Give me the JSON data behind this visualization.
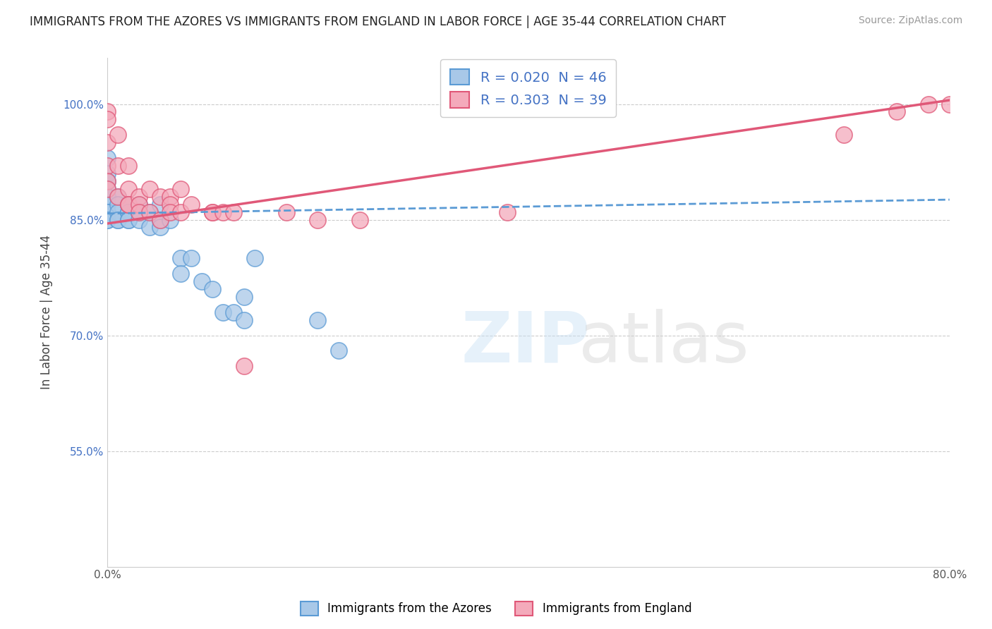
{
  "title": "IMMIGRANTS FROM THE AZORES VS IMMIGRANTS FROM ENGLAND IN LABOR FORCE | AGE 35-44 CORRELATION CHART",
  "source": "Source: ZipAtlas.com",
  "ylabel": "In Labor Force | Age 35-44",
  "xmin": 0.0,
  "xmax": 0.8,
  "ymin": 0.4,
  "ymax": 1.06,
  "yticks": [
    0.55,
    0.7,
    0.85,
    1.0
  ],
  "ytick_labels": [
    "55.0%",
    "70.0%",
    "85.0%",
    "100.0%"
  ],
  "xtick_labels": [
    "0.0%",
    "80.0%"
  ],
  "legend_r1": "R = 0.020  N = 46",
  "legend_r2": "R = 0.303  N = 39",
  "azores_color": "#a8c8e8",
  "england_color": "#f4aabb",
  "azores_line_color": "#5b9bd5",
  "england_line_color": "#e05878",
  "r_value_color": "#4472c4",
  "background_color": "#ffffff",
  "grid_color": "#cccccc",
  "azores_x": [
    0.0,
    0.0,
    0.0,
    0.0,
    0.0,
    0.0,
    0.0,
    0.0,
    0.0,
    0.0,
    0.0,
    0.0,
    0.0,
    0.01,
    0.01,
    0.01,
    0.01,
    0.01,
    0.02,
    0.02,
    0.02,
    0.02,
    0.02,
    0.02,
    0.03,
    0.03,
    0.03,
    0.03,
    0.04,
    0.04,
    0.05,
    0.05,
    0.05,
    0.06,
    0.07,
    0.07,
    0.08,
    0.09,
    0.1,
    0.11,
    0.12,
    0.13,
    0.14,
    0.2,
    0.22,
    0.13
  ],
  "azores_y": [
    0.93,
    0.91,
    0.9,
    0.89,
    0.88,
    0.88,
    0.87,
    0.87,
    0.86,
    0.86,
    0.86,
    0.85,
    0.85,
    0.88,
    0.87,
    0.86,
    0.85,
    0.85,
    0.87,
    0.87,
    0.86,
    0.86,
    0.85,
    0.85,
    0.87,
    0.86,
    0.86,
    0.85,
    0.86,
    0.84,
    0.87,
    0.85,
    0.84,
    0.85,
    0.8,
    0.78,
    0.8,
    0.77,
    0.76,
    0.73,
    0.73,
    0.72,
    0.8,
    0.72,
    0.68,
    0.75
  ],
  "england_x": [
    0.0,
    0.0,
    0.0,
    0.0,
    0.0,
    0.0,
    0.01,
    0.01,
    0.01,
    0.02,
    0.02,
    0.02,
    0.02,
    0.03,
    0.03,
    0.03,
    0.04,
    0.04,
    0.05,
    0.05,
    0.06,
    0.06,
    0.06,
    0.07,
    0.07,
    0.08,
    0.1,
    0.1,
    0.11,
    0.12,
    0.13,
    0.17,
    0.2,
    0.24,
    0.38,
    0.7,
    0.75,
    0.78,
    0.8
  ],
  "england_y": [
    0.99,
    0.98,
    0.95,
    0.92,
    0.9,
    0.89,
    0.96,
    0.92,
    0.88,
    0.92,
    0.89,
    0.87,
    0.87,
    0.88,
    0.87,
    0.86,
    0.89,
    0.86,
    0.88,
    0.85,
    0.88,
    0.87,
    0.86,
    0.89,
    0.86,
    0.87,
    0.86,
    0.86,
    0.86,
    0.86,
    0.66,
    0.86,
    0.85,
    0.85,
    0.86,
    0.96,
    0.99,
    1.0,
    1.0
  ],
  "azores_trendline_x": [
    0.0,
    0.8
  ],
  "azores_trendline_y": [
    0.858,
    0.876
  ],
  "england_trendline_x": [
    0.0,
    0.8
  ],
  "england_trendline_y": [
    0.845,
    1.005
  ]
}
